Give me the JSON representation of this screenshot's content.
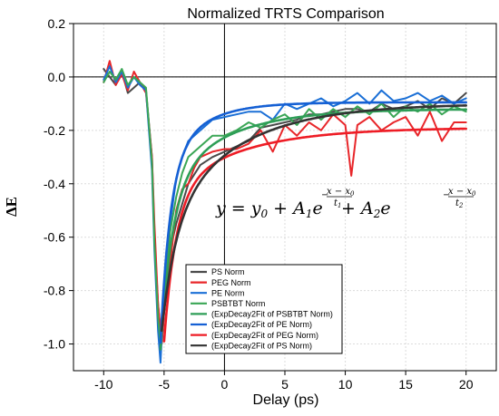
{
  "chart_data": {
    "type": "line",
    "title": "Normalized TRTS Comparison",
    "xlabel": "Delay (ps)",
    "ylabel": "ΔE",
    "xlim": [
      -12.5,
      22.5
    ],
    "ylim": [
      -1.1,
      0.2
    ],
    "xticks": [
      -10,
      -5,
      0,
      5,
      10,
      15,
      20
    ],
    "yticks": [
      -1.0,
      -0.8,
      -0.6,
      -0.4,
      -0.2,
      0.0,
      0.2
    ],
    "ytick_labels": [
      "-1.0",
      "-0.8",
      "-0.6",
      "-0.4",
      "-0.2",
      "0.0",
      "0.2"
    ],
    "grid": true,
    "legend_position": "bottom-center",
    "reference_lines": {
      "x": 0,
      "y": 0
    },
    "equation": {
      "lhs": "y = y",
      "sub0": "0",
      "plus1": " + A",
      "sub1": "1",
      "e1": "e",
      "plus2": " + A",
      "sub2": "2",
      "e2": "e",
      "exp1_num": "x − x",
      "exp1_num_sub": "0",
      "exp1_den": "t",
      "exp1_den_sub": "1",
      "exp2_num": "x − x",
      "exp2_num_sub": "0",
      "exp2_den": "t",
      "exp2_den_sub": "2",
      "minus": "−"
    },
    "series": [
      {
        "name": "PS Norm",
        "color": "#4a4a4a",
        "kind": "data",
        "x": [
          -10,
          -9.5,
          -9,
          -8.5,
          -8,
          -7.5,
          -7,
          -6.5,
          -6,
          -5.8,
          -5.5,
          -5.2,
          -5,
          -4.5,
          -4,
          -3,
          -2,
          -1,
          0,
          1,
          2,
          3,
          4,
          5,
          6,
          7,
          8,
          9,
          10,
          11,
          12,
          13,
          14,
          15,
          16,
          17,
          18,
          19,
          20
        ],
        "y": [
          0.03,
          0.0,
          -0.03,
          0.02,
          -0.06,
          -0.04,
          -0.02,
          -0.05,
          -0.3,
          -0.6,
          -0.85,
          -1.0,
          -0.88,
          -0.65,
          -0.55,
          -0.4,
          -0.33,
          -0.3,
          -0.28,
          -0.26,
          -0.24,
          -0.19,
          -0.18,
          -0.17,
          -0.16,
          -0.14,
          -0.14,
          -0.13,
          -0.12,
          -0.12,
          -0.13,
          -0.1,
          -0.12,
          -0.11,
          -0.09,
          -0.12,
          -0.08,
          -0.1,
          -0.06
        ]
      },
      {
        "name": "PEG Norm",
        "color": "#e8262a",
        "kind": "data",
        "x": [
          -10,
          -9.5,
          -9,
          -8.5,
          -8,
          -7.5,
          -7,
          -6.5,
          -6,
          -5.8,
          -5.5,
          -5.2,
          -5,
          -4.8,
          -4.5,
          -4,
          -3.5,
          -3,
          -2.5,
          -2,
          -1,
          0,
          1,
          2,
          3,
          4,
          5,
          6,
          7,
          8,
          9,
          10,
          10.5,
          11,
          12,
          13,
          14,
          15,
          16,
          17,
          18,
          19,
          20
        ],
        "y": [
          -0.02,
          0.06,
          -0.03,
          0.01,
          -0.05,
          0.02,
          -0.02,
          -0.06,
          -0.3,
          -0.55,
          -0.85,
          -1.0,
          -0.88,
          -0.8,
          -0.7,
          -0.5,
          -0.42,
          -0.4,
          -0.34,
          -0.3,
          -0.28,
          -0.27,
          -0.27,
          -0.25,
          -0.2,
          -0.28,
          -0.18,
          -0.22,
          -0.17,
          -0.2,
          -0.14,
          -0.18,
          -0.37,
          -0.18,
          -0.15,
          -0.2,
          -0.17,
          -0.15,
          -0.22,
          -0.13,
          -0.24,
          -0.17,
          -0.17
        ]
      },
      {
        "name": "PE Norm",
        "color": "#1a6fd6",
        "kind": "data",
        "x": [
          -10,
          -9.5,
          -9,
          -8.5,
          -8,
          -7.5,
          -7,
          -6.5,
          -6,
          -5.8,
          -5.5,
          -5.3,
          -5,
          -4.5,
          -4,
          -3.5,
          -3,
          -2,
          -1,
          0,
          1,
          2,
          3,
          4,
          5,
          6,
          7,
          8,
          9,
          10,
          11,
          12,
          13,
          14,
          15,
          16,
          17,
          18,
          19,
          20
        ],
        "y": [
          -0.01,
          0.04,
          -0.02,
          0.02,
          -0.04,
          0.0,
          -0.03,
          -0.05,
          -0.35,
          -0.65,
          -0.95,
          -1.07,
          -0.8,
          -0.55,
          -0.38,
          -0.3,
          -0.24,
          -0.2,
          -0.16,
          -0.15,
          -0.14,
          -0.13,
          -0.13,
          -0.16,
          -0.1,
          -0.12,
          -0.1,
          -0.08,
          -0.11,
          -0.09,
          -0.06,
          -0.1,
          -0.05,
          -0.09,
          -0.08,
          -0.06,
          -0.09,
          -0.07,
          -0.1,
          -0.08
        ]
      },
      {
        "name": "PSBTBT Norm",
        "color": "#3aa655",
        "kind": "data",
        "x": [
          -10,
          -9.5,
          -9,
          -8.5,
          -8,
          -7.5,
          -7,
          -6.5,
          -6,
          -5.8,
          -5.5,
          -5.3,
          -5,
          -4.5,
          -4,
          -3.5,
          -3,
          -2,
          -1,
          0,
          1,
          2,
          3,
          4,
          5,
          6,
          7,
          8,
          9,
          10,
          11,
          12,
          13,
          14,
          15,
          16,
          17,
          18,
          19,
          20
        ],
        "y": [
          -0.02,
          0.02,
          -0.01,
          0.03,
          -0.03,
          0.0,
          -0.02,
          -0.04,
          -0.32,
          -0.62,
          -0.9,
          -1.0,
          -0.85,
          -0.58,
          -0.45,
          -0.36,
          -0.3,
          -0.26,
          -0.22,
          -0.22,
          -0.2,
          -0.17,
          -0.19,
          -0.16,
          -0.14,
          -0.18,
          -0.12,
          -0.16,
          -0.12,
          -0.15,
          -0.11,
          -0.14,
          -0.1,
          -0.15,
          -0.11,
          -0.13,
          -0.1,
          -0.14,
          -0.11,
          -0.13
        ]
      },
      {
        "name": "(ExpDecay2Fit of PSBTBT Norm)",
        "color": "#2e9e57",
        "kind": "fit",
        "y0": -0.12,
        "A1": -0.6,
        "t1": 1.0,
        "A2": -0.3,
        "t2": 5.0,
        "x0": -5.3
      },
      {
        "name": "(ExpDecay2Fit of PE Norm)",
        "color": "#1560d4",
        "kind": "fit",
        "y0": -0.095,
        "A1": -0.65,
        "t1": 0.8,
        "A2": -0.25,
        "t2": 3.0,
        "x0": -5.3
      },
      {
        "name": "(ExpDecay2Fit of PEG Norm)",
        "color": "#ee1c25",
        "kind": "fit",
        "y0": -0.19,
        "A1": -0.55,
        "t1": 1.0,
        "A2": -0.25,
        "t2": 6.0,
        "x0": -5.0
      },
      {
        "name": "(ExpDecay2Fit of PS Norm)",
        "color": "#333333",
        "kind": "fit",
        "y0": -0.1,
        "A1": -0.4,
        "t1": 1.2,
        "A2": -0.45,
        "t2": 6.0,
        "x0": -5.2
      }
    ]
  }
}
